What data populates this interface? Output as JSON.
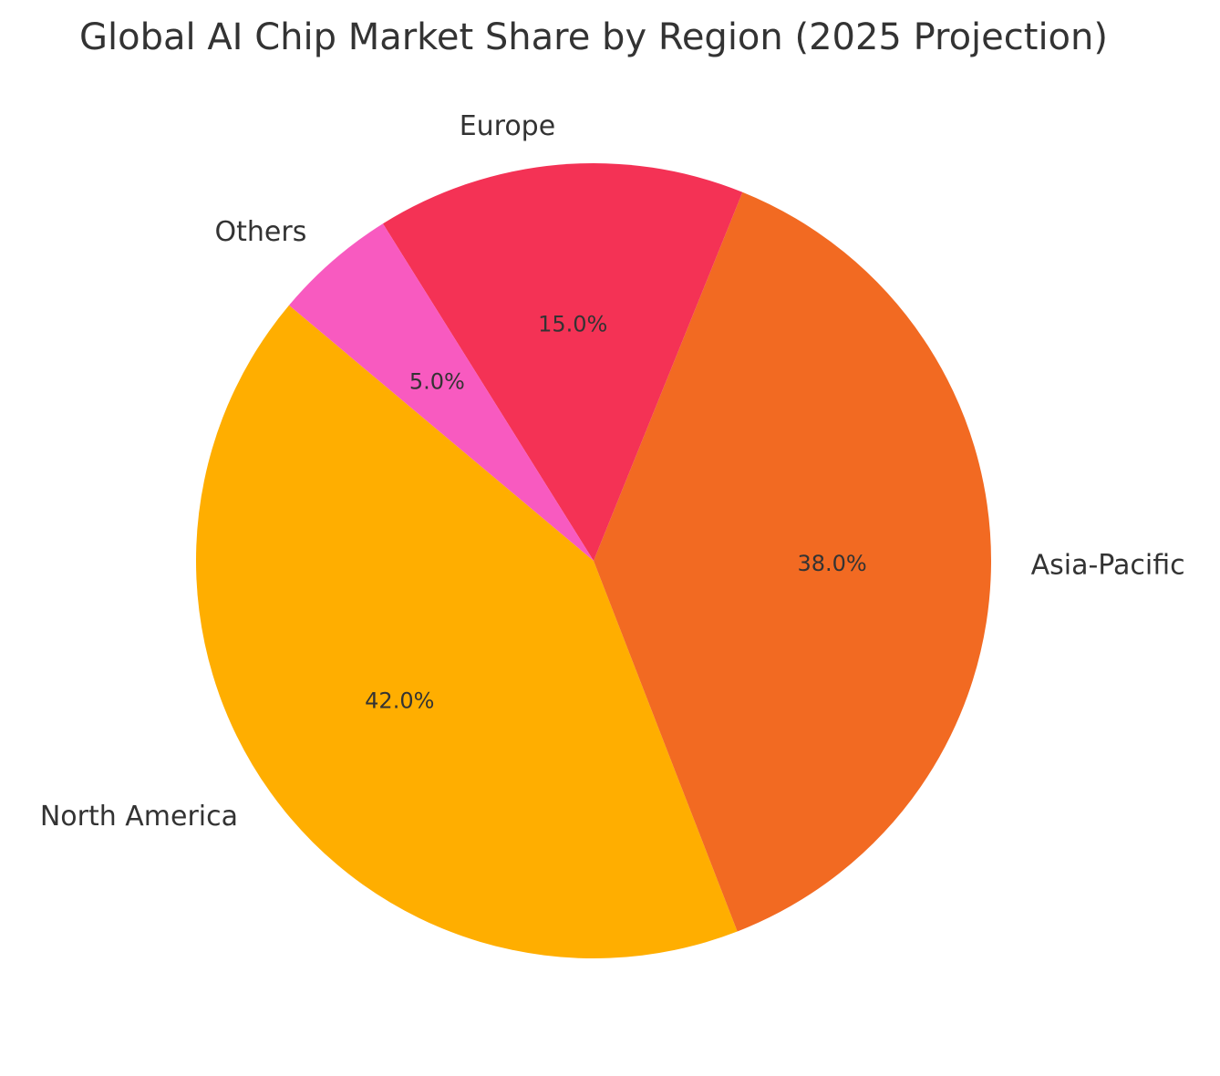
{
  "chart_data": {
    "type": "pie",
    "title": "Global AI Chip Market Share by Region (2025 Projection)",
    "slices": [
      {
        "label": "North America",
        "value": 42.0,
        "pct_label": "42.0%",
        "color": "#FFAE00"
      },
      {
        "label": "Asia-Pacific",
        "value": 38.0,
        "pct_label": "38.0%",
        "color": "#F26A22"
      },
      {
        "label": "Europe",
        "value": 15.0,
        "pct_label": "15.0%",
        "color": "#F43255"
      },
      {
        "label": "Others",
        "value": 5.0,
        "pct_label": "5.0%",
        "color": "#F85AC0"
      }
    ],
    "legend": "none",
    "counterclock": true
  }
}
